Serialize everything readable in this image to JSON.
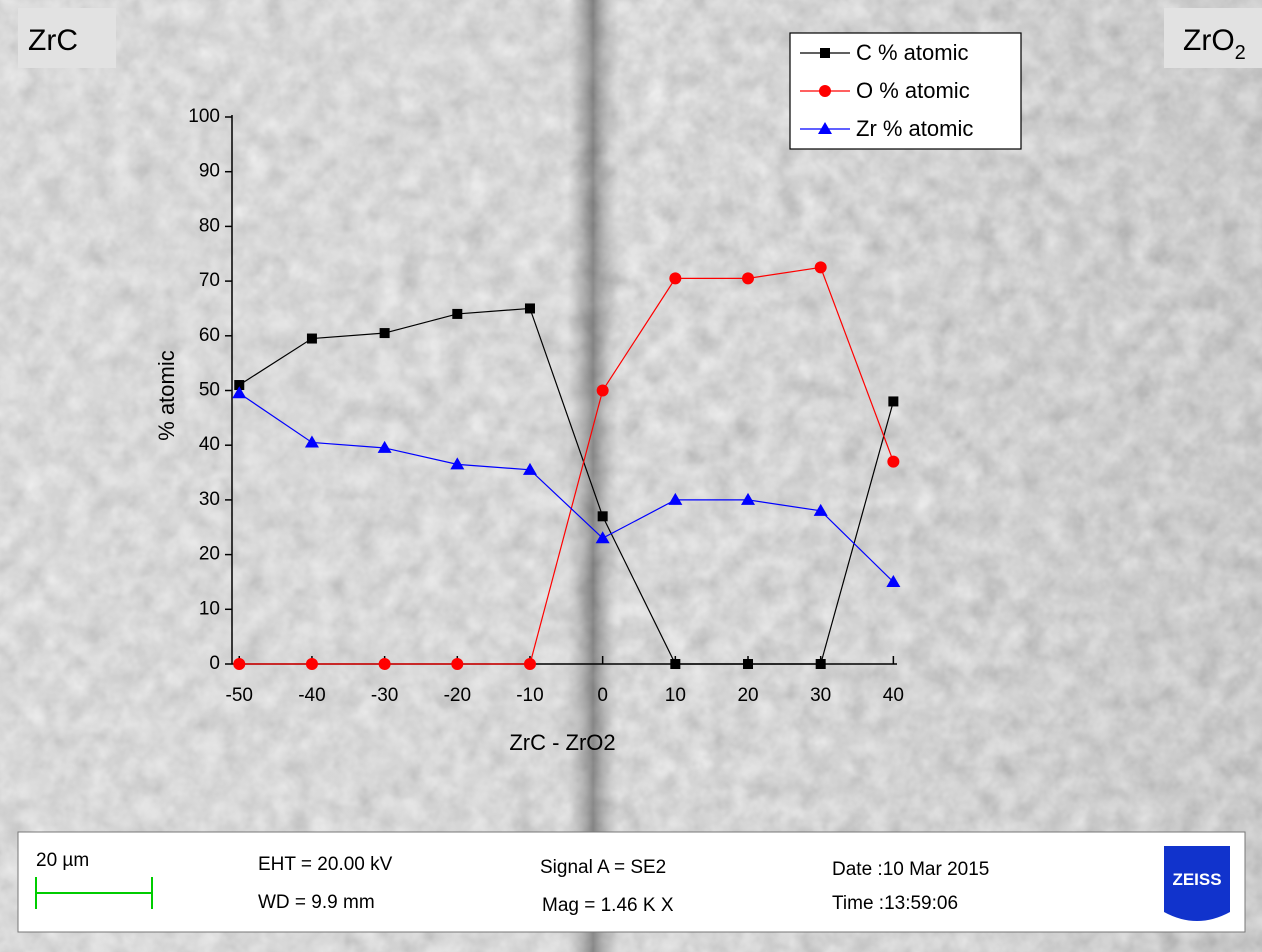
{
  "chart_data": {
    "type": "line",
    "x_label": "ZrC - ZrO2",
    "y_label": "% atomic",
    "x": [
      -50,
      -40,
      -30,
      -20,
      -10,
      0,
      10,
      20,
      30,
      40
    ],
    "series": [
      {
        "name": "C % atomic",
        "color": "#000000",
        "marker": "square",
        "values": [
          51,
          59.5,
          60.5,
          64,
          65,
          27,
          0,
          0,
          0,
          48
        ]
      },
      {
        "name": "O % atomic",
        "color": "#ff0000",
        "marker": "circle",
        "values": [
          0,
          0,
          0,
          0,
          0,
          50,
          70.5,
          70.5,
          72.5,
          37
        ]
      },
      {
        "name": "Zr % atomic",
        "color": "#0000ff",
        "marker": "triangle",
        "values": [
          49.5,
          40.5,
          39.5,
          36.5,
          35.5,
          23,
          30,
          30,
          28,
          15
        ]
      }
    ],
    "xlim": [
      -51,
      40.5
    ],
    "xticks": [
      -50,
      -40,
      -30,
      -20,
      -10,
      0,
      10,
      20,
      30,
      40
    ],
    "ylim": [
      0,
      100
    ],
    "yticks": [
      0,
      10,
      20,
      30,
      40,
      50,
      60,
      70,
      80,
      90,
      100
    ],
    "legend": "upper right"
  },
  "overlay": {
    "left_label": "ZrC",
    "right_label": {
      "base": "ZrO",
      "sub": "2"
    }
  },
  "info_bar": {
    "scale": "20 µm",
    "eht": "EHT = 20.00 kV",
    "wd": "WD =  9.9 mm",
    "signal": "Signal A = SE2",
    "mag": "Mag =   1.46 K X",
    "date": "Date :10 Mar 2015",
    "time": "Time :13:59:06",
    "logo": "ZEISS"
  }
}
